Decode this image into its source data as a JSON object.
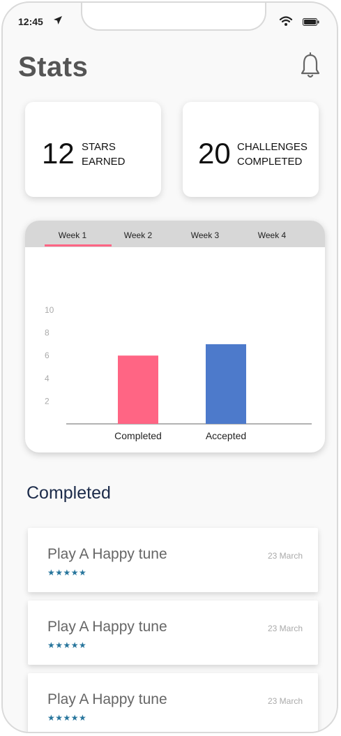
{
  "status": {
    "time": "12:45"
  },
  "header": {
    "title": "Stats"
  },
  "stats": [
    {
      "value": "12",
      "label_line1": "STARS",
      "label_line2": "EARNED"
    },
    {
      "value": "20",
      "label_line1": "CHALLENGES",
      "label_line2": "COMPLETED"
    }
  ],
  "tabs": [
    {
      "label": "Week 1",
      "active": true
    },
    {
      "label": "Week 2",
      "active": false
    },
    {
      "label": "Week 3",
      "active": false
    },
    {
      "label": "Week 4",
      "active": false
    }
  ],
  "colors": {
    "accent": "#ff6584",
    "completed": "#ff6584",
    "accepted": "#4d7acb",
    "stars": "#27759c"
  },
  "chart_data": {
    "type": "bar",
    "categories": [
      "Completed",
      "Accepted"
    ],
    "values": [
      6,
      7
    ],
    "colors": [
      "#ff6584",
      "#4d7acb"
    ],
    "ylim": [
      0,
      10
    ],
    "yticks": [
      2,
      4,
      6,
      8,
      10
    ],
    "grid": false
  },
  "completed": {
    "title": "Completed",
    "items": [
      {
        "title": "Play A Happy tune",
        "stars": "★★★★★",
        "date": "23 March"
      },
      {
        "title": "Play A Happy tune",
        "stars": "★★★★★",
        "date": "23 March"
      },
      {
        "title": "Play A Happy tune",
        "stars": "★★★★★",
        "date": "23 March"
      }
    ]
  }
}
